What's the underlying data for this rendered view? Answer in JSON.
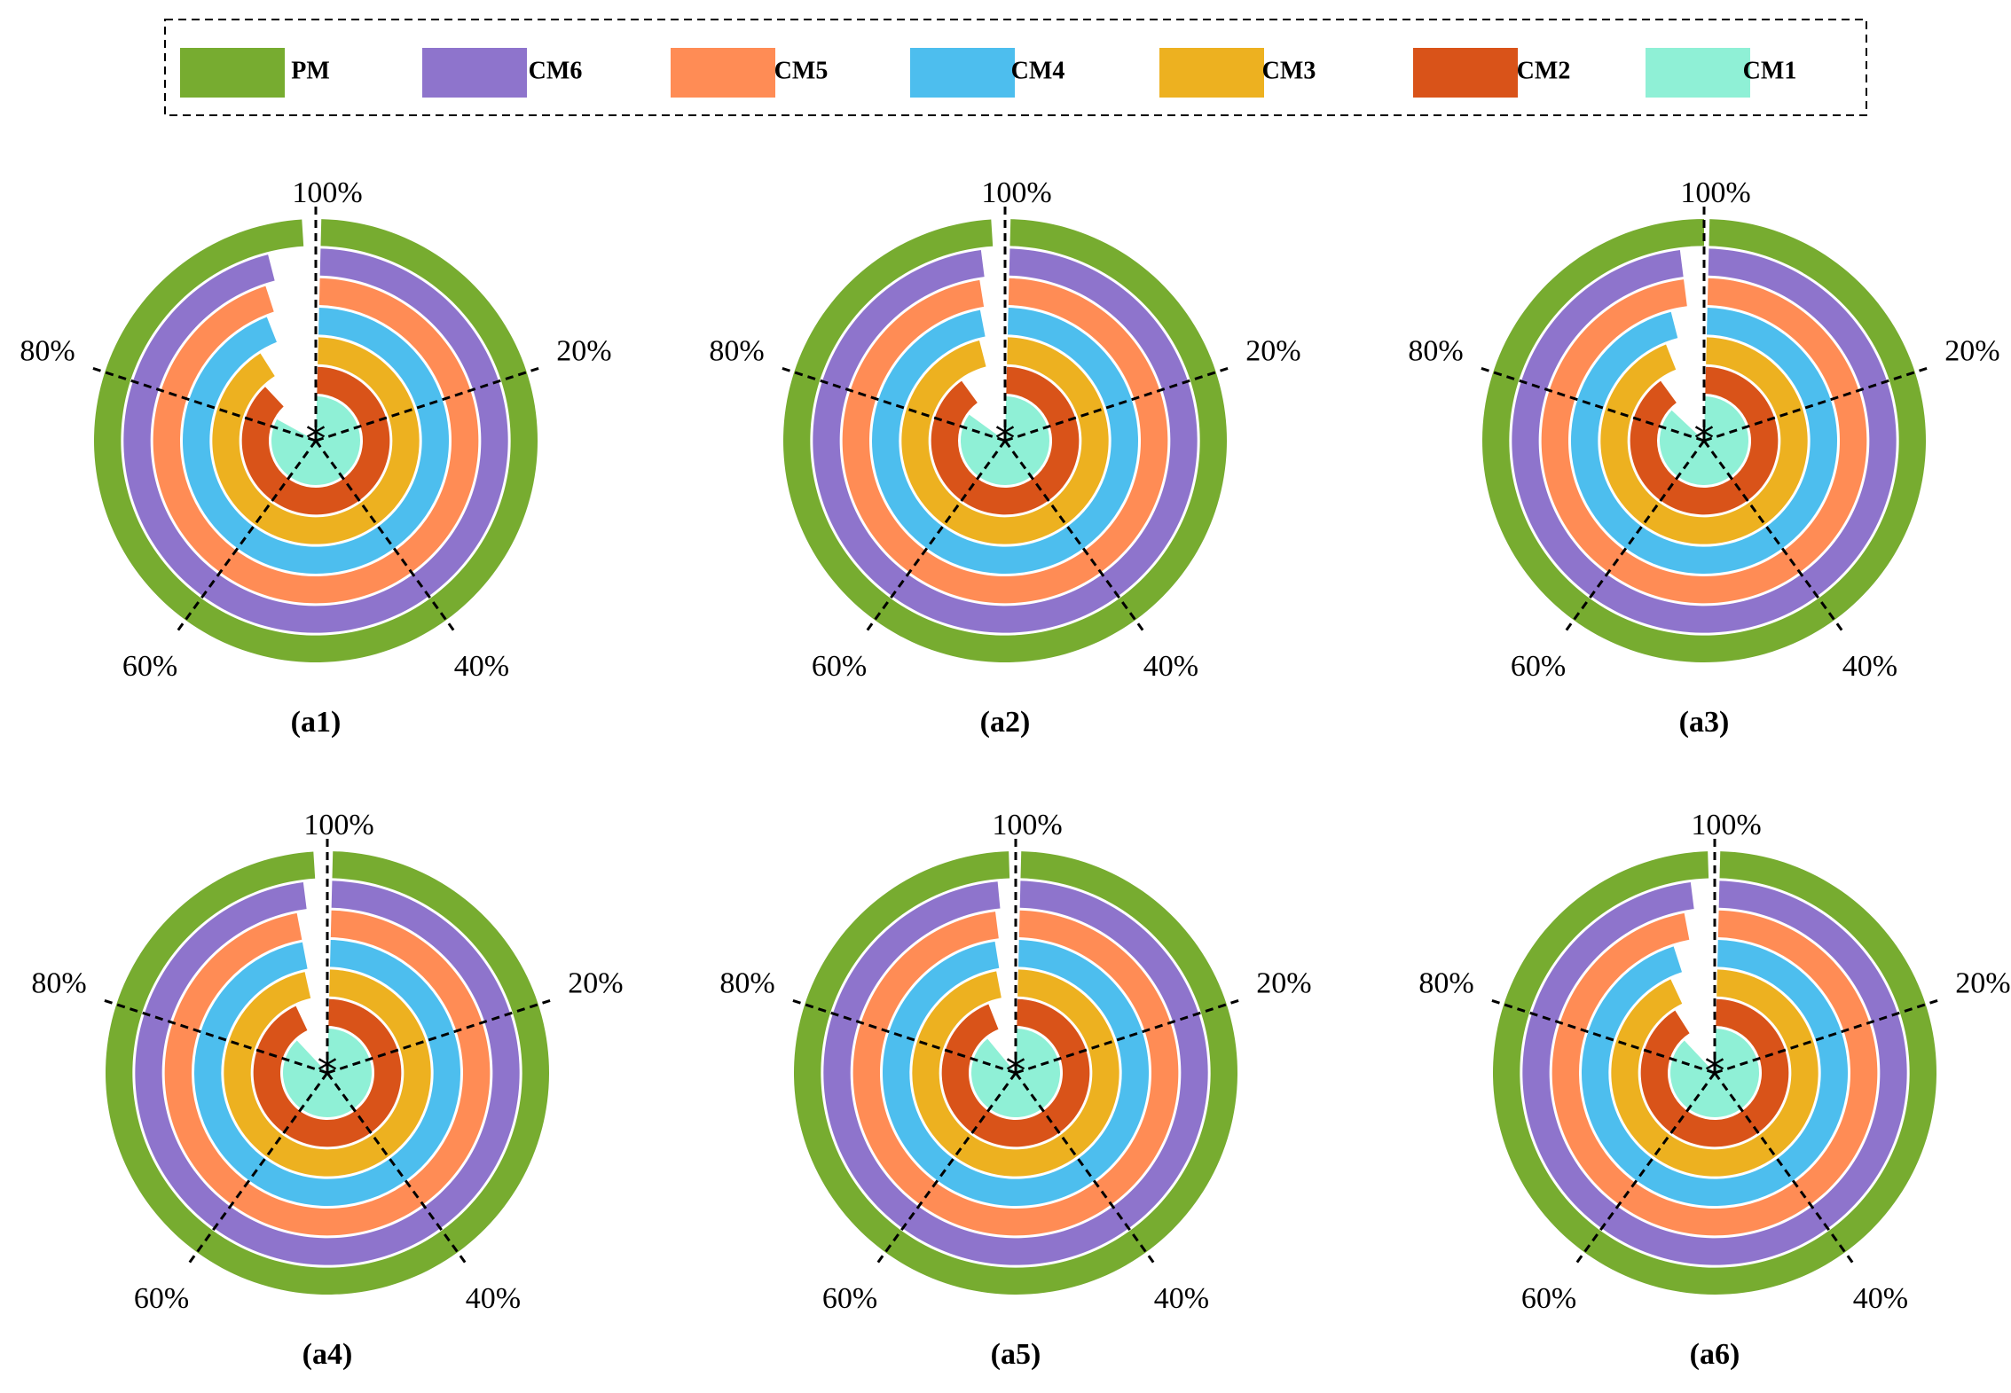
{
  "legend": {
    "items": [
      {
        "label": "PM",
        "color": "#77AC30"
      },
      {
        "label": "CM6",
        "color": "#8E74CC"
      },
      {
        "label": "CM5",
        "color": "#FF8C55"
      },
      {
        "label": "CM4",
        "color": "#4DBEEE"
      },
      {
        "label": "CM3",
        "color": "#EDB120"
      },
      {
        "label": "CM2",
        "color": "#D95319"
      },
      {
        "label": "CM1",
        "color": "#8FF0D6"
      }
    ]
  },
  "chart_data": [
    {
      "type": "radial-bar",
      "title": "(a1)",
      "panel_label": "(a1)",
      "series": [
        {
          "name": "CM1",
          "value": 83
        },
        {
          "name": "CM2",
          "value": 88
        },
        {
          "name": "CM3",
          "value": 91
        },
        {
          "name": "CM4",
          "value": 94
        },
        {
          "name": "CM5",
          "value": 95
        },
        {
          "name": "CM6",
          "value": 96
        },
        {
          "name": "PM",
          "value": 99
        }
      ],
      "axis_ticks": [
        "20%",
        "40%",
        "60%",
        "80%",
        "100%"
      ]
    },
    {
      "type": "radial-bar",
      "title": "(a2)",
      "panel_label": "(a2)",
      "series": [
        {
          "name": "CM1",
          "value": 85
        },
        {
          "name": "CM2",
          "value": 90
        },
        {
          "name": "CM3",
          "value": 96
        },
        {
          "name": "CM4",
          "value": 97
        },
        {
          "name": "CM5",
          "value": 97.5
        },
        {
          "name": "CM6",
          "value": 98
        },
        {
          "name": "PM",
          "value": 99
        }
      ],
      "axis_ticks": [
        "20%",
        "40%",
        "60%",
        "80%",
        "100%"
      ]
    },
    {
      "type": "radial-bar",
      "title": "(a3)",
      "panel_label": "(a3)",
      "series": [
        {
          "name": "CM1",
          "value": 87
        },
        {
          "name": "CM2",
          "value": 90
        },
        {
          "name": "CM3",
          "value": 94
        },
        {
          "name": "CM4",
          "value": 96
        },
        {
          "name": "CM5",
          "value": 98
        },
        {
          "name": "CM6",
          "value": 98
        },
        {
          "name": "PM",
          "value": 100
        }
      ],
      "axis_ticks": [
        "20%",
        "40%",
        "60%",
        "80%",
        "100%"
      ]
    },
    {
      "type": "radial-bar",
      "title": "(a4)",
      "panel_label": "(a4)",
      "series": [
        {
          "name": "CM1",
          "value": 88
        },
        {
          "name": "CM2",
          "value": 93
        },
        {
          "name": "CM3",
          "value": 96.5
        },
        {
          "name": "CM4",
          "value": 97
        },
        {
          "name": "CM5",
          "value": 97
        },
        {
          "name": "CM6",
          "value": 98
        },
        {
          "name": "PM",
          "value": 99
        }
      ],
      "axis_ticks": [
        "20%",
        "40%",
        "60%",
        "80%",
        "100%"
      ]
    },
    {
      "type": "radial-bar",
      "title": "(a5)",
      "panel_label": "(a5)",
      "series": [
        {
          "name": "CM1",
          "value": 89
        },
        {
          "name": "CM2",
          "value": 94
        },
        {
          "name": "CM3",
          "value": 97
        },
        {
          "name": "CM4",
          "value": 97.5
        },
        {
          "name": "CM5",
          "value": 98
        },
        {
          "name": "CM6",
          "value": 98.5
        },
        {
          "name": "PM",
          "value": 99.5
        }
      ],
      "axis_ticks": [
        "20%",
        "40%",
        "60%",
        "80%",
        "100%"
      ]
    },
    {
      "type": "radial-bar",
      "title": "(a6)",
      "panel_label": "(a6)",
      "series": [
        {
          "name": "CM1",
          "value": 88
        },
        {
          "name": "CM2",
          "value": 91
        },
        {
          "name": "CM3",
          "value": 93
        },
        {
          "name": "CM4",
          "value": 95
        },
        {
          "name": "CM5",
          "value": 97
        },
        {
          "name": "CM6",
          "value": 98
        },
        {
          "name": "PM",
          "value": 99.5
        }
      ],
      "axis_ticks": [
        "20%",
        "40%",
        "60%",
        "80%",
        "100%"
      ]
    }
  ]
}
